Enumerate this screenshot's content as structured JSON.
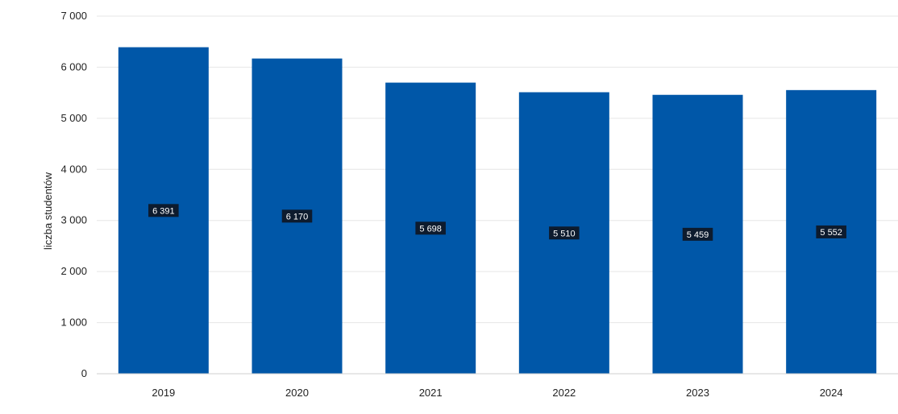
{
  "chart_data": {
    "type": "bar",
    "title": "",
    "xlabel": "",
    "ylabel": "liczba studentów",
    "categories": [
      "2019",
      "2020",
      "2021",
      "2022",
      "2023",
      "2024"
    ],
    "values": [
      6391,
      6170,
      5698,
      5510,
      5459,
      5552
    ],
    "data_labels": [
      "6 391",
      "6 170",
      "5 698",
      "5 510",
      "5 459",
      "5 552"
    ],
    "ylim": [
      0,
      7000
    ],
    "yticks": [
      0,
      1000,
      2000,
      3000,
      4000,
      5000,
      6000,
      7000
    ],
    "ytick_labels": [
      "0",
      "1 000",
      "2 000",
      "3 000",
      "4 000",
      "5 000",
      "6 000",
      "7 000"
    ],
    "grid": true,
    "legend": "none",
    "colors": {
      "bar": "#0057a8",
      "label_bg": "#0d1b2e",
      "label_text": "#ffffff",
      "grid": "#e6e6e6",
      "axis": "#cfcfcf",
      "text": "#222222"
    }
  }
}
